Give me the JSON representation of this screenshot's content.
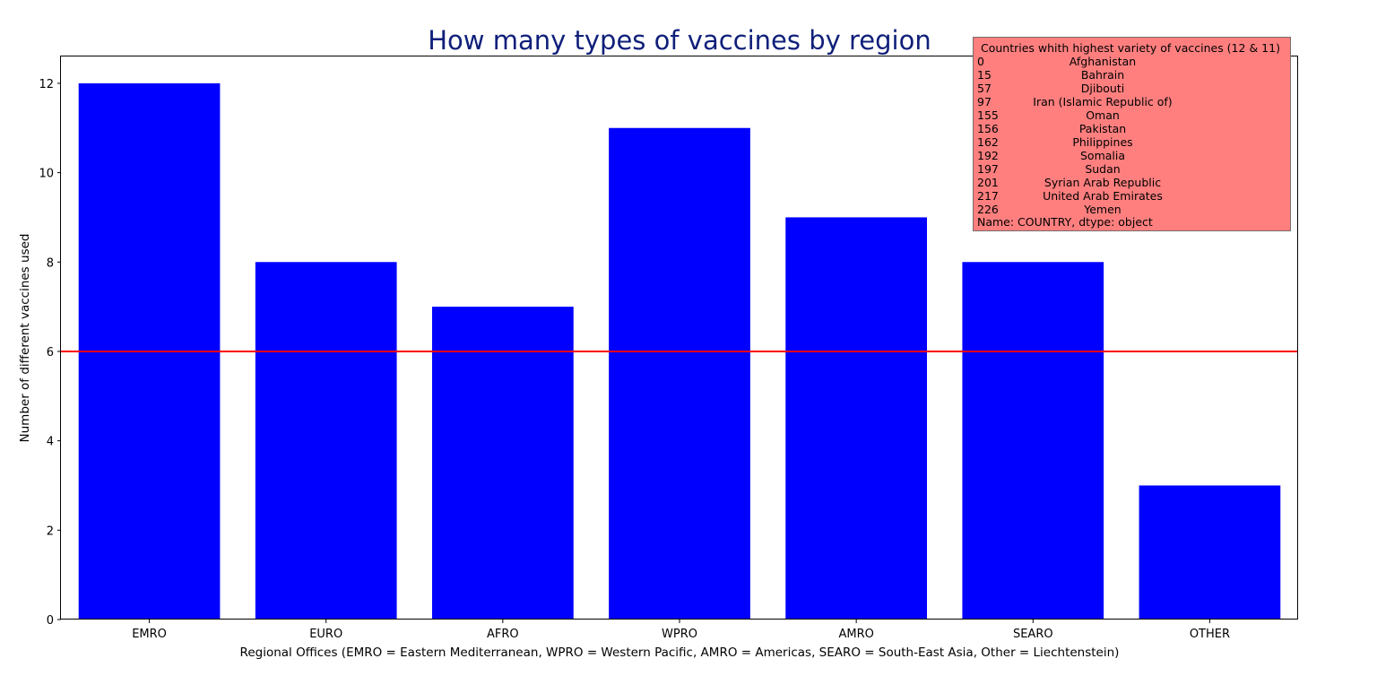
{
  "chart_data": {
    "type": "bar",
    "title": "How many types of vaccines by region",
    "xlabel": "Regional Offices (EMRO = Eastern Mediterranean, WPRO = Western Pacific, AMRO = Americas, SEARO = South-East Asia, Other = Liechtenstein)",
    "ylabel": "Number of different vaccines used",
    "categories": [
      "EMRO",
      "EURO",
      "AFRO",
      "WPRO",
      "AMRO",
      "SEARO",
      "OTHER"
    ],
    "values": [
      12,
      8,
      7,
      11,
      9,
      8,
      3
    ],
    "ylim": [
      0,
      12.6
    ],
    "yticks": [
      0,
      2,
      4,
      6,
      8,
      10,
      12
    ],
    "reference_line": 6,
    "colors": {
      "bars": "#0000ff",
      "reference_line": "#ff0000",
      "title": "#0f1f7a",
      "annotation_bg": "#ff7f7f"
    },
    "grid": false,
    "annotation": {
      "title": "Countries whith highest variety of vaccines (12 & 11)",
      "rows": [
        {
          "index": "0",
          "country": "Afghanistan"
        },
        {
          "index": "15",
          "country": "Bahrain"
        },
        {
          "index": "57",
          "country": "Djibouti"
        },
        {
          "index": "97",
          "country": "Iran (Islamic Republic of)"
        },
        {
          "index": "155",
          "country": "Oman"
        },
        {
          "index": "156",
          "country": "Pakistan"
        },
        {
          "index": "162",
          "country": "Philippines"
        },
        {
          "index": "192",
          "country": "Somalia"
        },
        {
          "index": "197",
          "country": "Sudan"
        },
        {
          "index": "201",
          "country": "Syrian Arab Republic"
        },
        {
          "index": "217",
          "country": "United Arab Emirates"
        },
        {
          "index": "226",
          "country": "Yemen"
        }
      ],
      "footer": "Name: COUNTRY, dtype: object",
      "placement": "top-right"
    }
  }
}
